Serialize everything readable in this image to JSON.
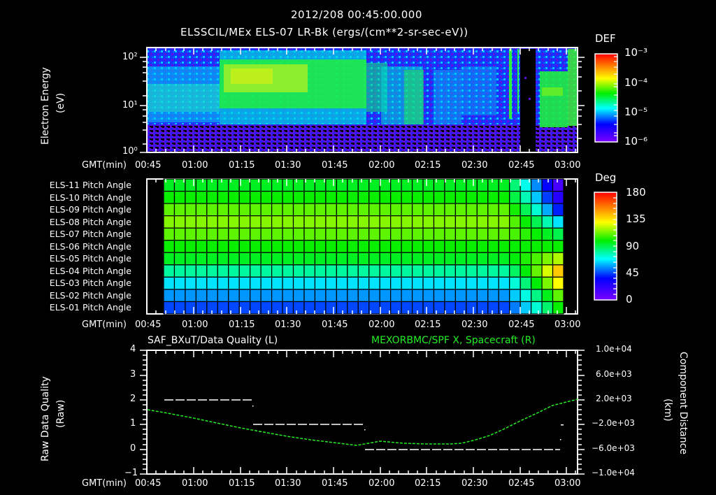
{
  "header": {
    "datetime": "2012/208 00:45:00.000",
    "title": "ELSSCIL/MEx ELS-07 LR-Bk  (ergs/(cm**2-sr-sec-eV))"
  },
  "panel1": {
    "ylabel": "Electron Energy",
    "yunit": "(eV)",
    "yticks": [
      "10²",
      "10¹",
      "10⁰"
    ],
    "xaxis_label": "GMT(min)",
    "xticks": [
      "00:45",
      "01:00",
      "01:15",
      "01:30",
      "01:45",
      "02:00",
      "02:15",
      "02:30",
      "02:45",
      "03:00"
    ],
    "colorbar": {
      "label": "DEF",
      "ticks": [
        "10⁻³",
        "10⁻⁴",
        "10⁻⁵",
        "10⁻⁶"
      ]
    }
  },
  "panel2": {
    "rows": [
      "ELS-11 Pitch Angle",
      "ELS-10 Pitch Angle",
      "ELS-09 Pitch Angle",
      "ELS-08 Pitch Angle",
      "ELS-07 Pitch Angle",
      "ELS-06 Pitch Angle",
      "ELS-05 Pitch Angle",
      "ELS-04 Pitch Angle",
      "ELS-03 Pitch Angle",
      "ELS-02 Pitch Angle",
      "ELS-01 Pitch Angle"
    ],
    "xaxis_label": "GMT(min)",
    "xticks": [
      "00:45",
      "01:00",
      "01:15",
      "01:30",
      "01:45",
      "02:00",
      "02:15",
      "02:30",
      "02:45",
      "03:00"
    ],
    "colorbar": {
      "label": "Deg",
      "ticks": [
        "180",
        "135",
        "90",
        "45",
        "0"
      ]
    }
  },
  "panel3": {
    "left_title": "SAF_BXuT/Data Quality (L)",
    "right_title": "MEXORBMC/SPF X, Spacecraft (R)",
    "ylabel_left": "Raw Data Quality",
    "yunit_left": "(Raw)",
    "yticks_left": [
      "4",
      "3",
      "2",
      "1",
      "0",
      "−1"
    ],
    "ylabel_right": "Component Distance",
    "yunit_right": "(km)",
    "yticks_right": [
      "1.0e+04",
      "6.0e+03",
      "2.0e+03",
      "−2.0e+03",
      "−6.0e+03",
      "−1.0e+04"
    ],
    "xaxis_label": "GMT(min)",
    "xticks": [
      "00:45",
      "01:00",
      "01:15",
      "01:30",
      "01:45",
      "02:00",
      "02:15",
      "02:30",
      "02:45",
      "03:00"
    ],
    "colors": {
      "quality": "#ffffff",
      "distance": "#22ee22"
    }
  },
  "chart_data": [
    {
      "type": "heatmap",
      "title": "ELSSCIL/MEx ELS-07 LR-Bk (ergs/(cm**2-sr-sec-eV))",
      "xlabel": "GMT(min)",
      "ylabel": "Electron Energy (eV)",
      "x_range": [
        "00:45",
        "03:03"
      ],
      "y_range": [
        1,
        150
      ],
      "y_scale": "log",
      "colorbar": {
        "label": "DEF",
        "range": [
          1e-06,
          0.001
        ],
        "scale": "log"
      },
      "features": [
        {
          "time": "00:45-01:08",
          "energy_eV": "4-100",
          "level": "~1e-5 (cyan/blue)"
        },
        {
          "time": "01:08-01:52",
          "energy_eV": "15-60",
          "level": "~1e-4 (green/yellow band)"
        },
        {
          "time": "01:52-02:30",
          "energy_eV": "4-80",
          "level": "~3e-5 patchy"
        },
        {
          "time": "02:40-02:47",
          "energy_eV": "all",
          "level": "data gap (black)"
        },
        {
          "time": "02:50-03:02",
          "energy_eV": "4-40",
          "level": "~1e-4 (green)"
        }
      ]
    },
    {
      "type": "heatmap",
      "title": "ELS Pitch Angle",
      "xlabel": "GMT(min)",
      "categories": [
        "ELS-11",
        "ELS-10",
        "ELS-09",
        "ELS-08",
        "ELS-07",
        "ELS-06",
        "ELS-05",
        "ELS-04",
        "ELS-03",
        "ELS-02",
        "ELS-01"
      ],
      "colorbar": {
        "label": "Deg",
        "range": [
          0,
          180
        ]
      },
      "x_range": [
        "00:49",
        "02:57"
      ],
      "values_deg_typical": [
        95,
        100,
        110,
        115,
        110,
        100,
        95,
        80,
        65,
        55,
        45
      ],
      "values_deg_end": [
        15,
        25,
        40,
        65,
        90,
        100,
        120,
        140,
        130,
        110,
        100
      ]
    },
    {
      "type": "line",
      "title": "SAF_BXuT/Data Quality (L) & MEXORBMC/SPF X, Spacecraft (R)",
      "xlabel": "GMT(min)",
      "ylabel": "Raw Data Quality (Raw)",
      "ylabel_right": "Component Distance (km)",
      "ylim": [
        -1,
        4
      ],
      "ylim_right": [
        -10000,
        10000
      ],
      "series": [
        {
          "name": "Data Quality",
          "axis": "left",
          "points": [
            [
              "00:50",
              2
            ],
            [
              "01:18",
              2
            ],
            [
              "01:19",
              1
            ],
            [
              "01:48",
              1
            ],
            [
              "01:49",
              0
            ],
            [
              "02:57",
              0
            ],
            [
              "02:58",
              1
            ]
          ]
        },
        {
          "name": "SPF X (km)",
          "axis": "right",
          "points": [
            [
              "00:45",
              -400
            ],
            [
              "01:00",
              -1800
            ],
            [
              "01:15",
              -3200
            ],
            [
              "01:30",
              -4500
            ],
            [
              "01:45",
              -5600
            ],
            [
              "02:00",
              -6500
            ],
            [
              "02:15",
              -6800
            ],
            [
              "02:25",
              -6700
            ],
            [
              "02:35",
              -5500
            ],
            [
              "02:45",
              -3000
            ],
            [
              "03:00",
              900
            ]
          ]
        }
      ]
    }
  ]
}
